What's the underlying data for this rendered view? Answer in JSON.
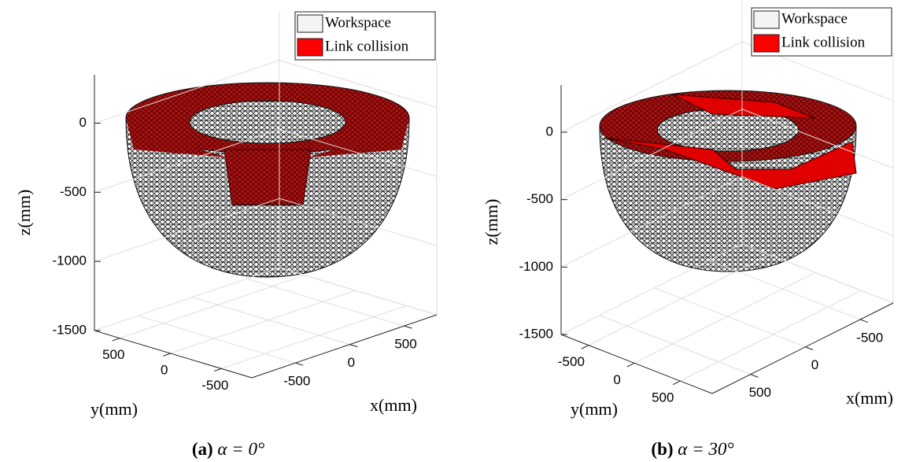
{
  "chart_data": [
    {
      "type": "surface3d",
      "zlabel": "z(mm)",
      "ylabel": "y(mm)",
      "xlabel": "x(mm)",
      "zlim": [
        -1500,
        350
      ],
      "zticks": [
        0,
        -500,
        -1000,
        -1500
      ],
      "ylim": [
        750,
        -800
      ],
      "yticks": [
        500,
        0,
        -500
      ],
      "xlim": [
        -900,
        800
      ],
      "xticks": [
        -500,
        0,
        500
      ],
      "grid": true,
      "series": [
        {
          "name": "Workspace",
          "color": "#f4f4f4"
        },
        {
          "name": "Link collision",
          "color": "#ff0000"
        }
      ],
      "caption": {
        "label": "(a)",
        "text": "α = 0°"
      }
    },
    {
      "type": "surface3d",
      "zlabel": "z(mm)",
      "ylabel": "y(mm)",
      "xlabel": "x(mm)",
      "zlim": [
        -1500,
        350
      ],
      "zticks": [
        0,
        -500,
        -1000,
        -1500
      ],
      "ylim": [
        -800,
        850
      ],
      "yticks": [
        -500,
        0,
        500
      ],
      "xlim": [
        850,
        -800
      ],
      "xticks": [
        -500,
        0,
        500
      ],
      "grid": true,
      "series": [
        {
          "name": "Workspace",
          "color": "#f4f4f4"
        },
        {
          "name": "Link collision",
          "color": "#ff0000"
        }
      ],
      "caption": {
        "label": "(b)",
        "text": "α = 30°"
      }
    }
  ]
}
